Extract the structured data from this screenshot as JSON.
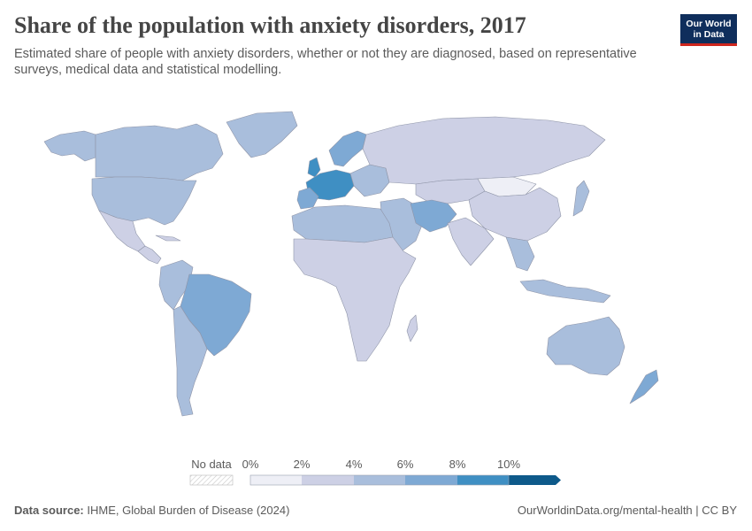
{
  "header": {
    "title": "Share of the population with anxiety disorders, 2017",
    "subtitle": "Estimated share of people with anxiety disorders, whether or not they are diagnosed, based on representative surveys, medical data and statistical modelling."
  },
  "logo": {
    "line1": "Our World",
    "line2": "in Data"
  },
  "legend": {
    "no_data_label": "No data",
    "ticks": [
      "0%",
      "2%",
      "4%",
      "6%",
      "8%",
      "10%"
    ],
    "bin_colors": [
      "#eeeff6",
      "#cdd0e5",
      "#a9bedc",
      "#7ea9d4",
      "#3f8fc3",
      "#0e5a8a"
    ]
  },
  "footer": {
    "source_label": "Data source:",
    "source_text": "IHME, Global Burden of Disease (2024)",
    "url_text": "OurWorldinData.org/mental-health | CC BY"
  },
  "colors": {
    "ocean": "#ffffff",
    "border": "#9aa0b0"
  }
}
